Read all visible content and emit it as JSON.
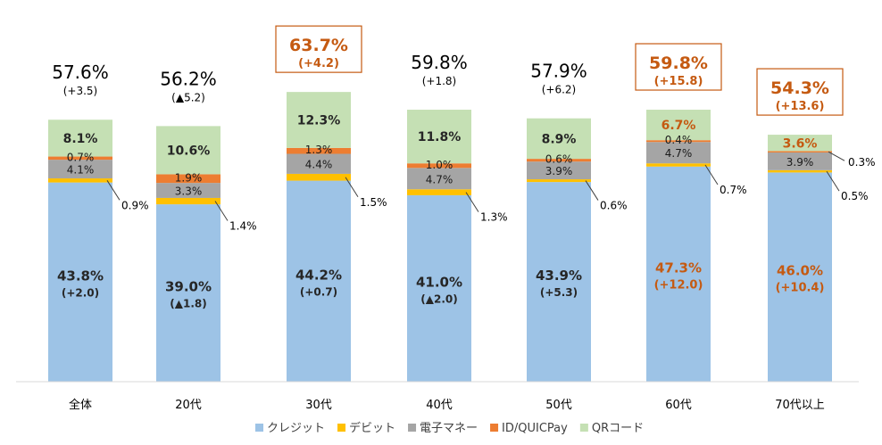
{
  "chart_data": {
    "type": "bar",
    "stacked": true,
    "categories": [
      "全体",
      "20代",
      "30代",
      "40代",
      "50代",
      "60代",
      "70代以上"
    ],
    "colors": {
      "credit": "#9DC3E6",
      "debit": "#FFC000",
      "emoney": "#A5A5A5",
      "idquic": "#ED7D31",
      "qr": "#C5E0B4",
      "highlight": "#C55A11",
      "text": "#000000",
      "bold_text": "#262626"
    },
    "series": [
      {
        "key": "credit",
        "name": "クレジット",
        "values": [
          43.8,
          39.0,
          44.2,
          41.0,
          43.9,
          47.3,
          46.0
        ]
      },
      {
        "key": "debit",
        "name": "デビット",
        "values": [
          0.9,
          1.4,
          1.5,
          1.3,
          0.6,
          0.7,
          0.5
        ]
      },
      {
        "key": "emoney",
        "name": "電子マネー",
        "values": [
          4.1,
          3.3,
          4.4,
          4.7,
          3.9,
          4.7,
          3.9
        ]
      },
      {
        "key": "idquic",
        "name": "ID/QUICPay",
        "values": [
          0.7,
          1.9,
          1.3,
          1.0,
          0.6,
          0.4,
          0.3
        ]
      },
      {
        "key": "qr",
        "name": "QRコード",
        "values": [
          8.1,
          10.6,
          12.3,
          11.8,
          8.9,
          6.7,
          3.6
        ]
      }
    ],
    "credit_labels": [
      "43.8%",
      "39.0%",
      "44.2%",
      "41.0%",
      "43.9%",
      "47.3%",
      "46.0%"
    ],
    "credit_changes": [
      "(+2.0)",
      "(▲1.8)",
      "(+0.7)",
      "(▲2.0)",
      "(+5.3)",
      "(+12.0)",
      "(+10.4)"
    ],
    "credit_highlight": [
      false,
      false,
      false,
      false,
      false,
      true,
      true
    ],
    "debit_labels": [
      "0.9%",
      "1.4%",
      "1.5%",
      "1.3%",
      "0.6%",
      "0.7%",
      "0.5%"
    ],
    "emoney_labels": [
      "4.1%",
      "3.3%",
      "4.4%",
      "4.7%",
      "3.9%",
      "4.7%",
      "3.9%"
    ],
    "idquic_labels": [
      "0.7%",
      "1.9%",
      "1.3%",
      "1.0%",
      "0.6%",
      "0.4%",
      "0.3%"
    ],
    "qr_labels": [
      "8.1%",
      "10.6%",
      "12.3%",
      "11.8%",
      "8.9%",
      "6.7%",
      "3.6%"
    ],
    "qr_highlight": [
      false,
      false,
      false,
      false,
      false,
      true,
      true
    ],
    "totals": [
      "57.6%",
      "56.2%",
      "63.7%",
      "59.8%",
      "57.9%",
      "59.8%",
      "54.3%"
    ],
    "total_changes": [
      "(+3.5)",
      "(▲5.2)",
      "(+4.2)",
      "(+1.8)",
      "(+6.2)",
      "(+15.8)",
      "(+13.6)"
    ],
    "total_highlight": [
      false,
      false,
      true,
      false,
      false,
      true,
      true
    ],
    "ylim": [
      0,
      65
    ],
    "legend_position": "bottom",
    "grid": false
  }
}
